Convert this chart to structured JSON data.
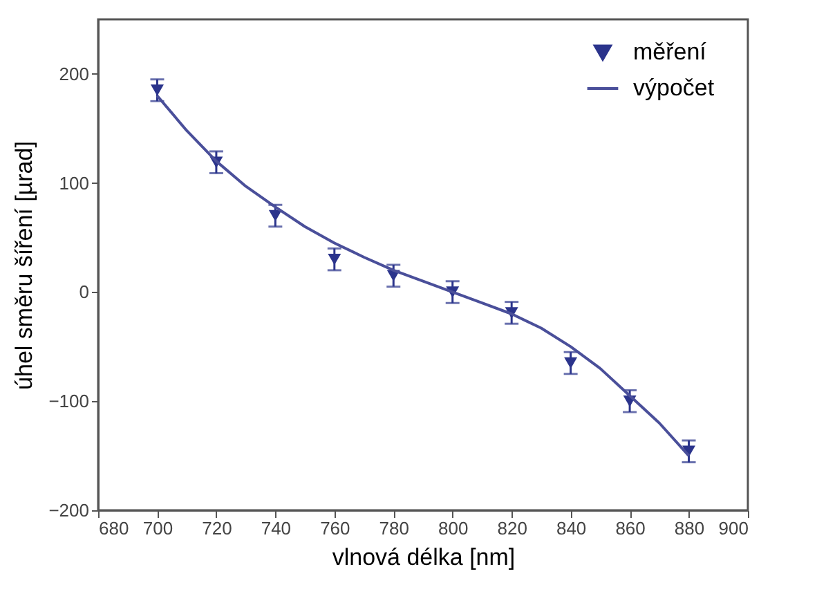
{
  "chart_data": {
    "type": "scatter",
    "xlabel": "vlnová délka [nm]",
    "ylabel": "úhel směru šíření [µrad]",
    "xlim": [
      680,
      900
    ],
    "xticks": [
      680,
      700,
      720,
      740,
      760,
      780,
      800,
      820,
      840,
      860,
      880,
      900
    ],
    "ylim": [
      -200,
      250
    ],
    "yticks": [
      -200,
      -100,
      0,
      100,
      200
    ],
    "grid": false,
    "legend": "top right",
    "series": [
      {
        "name": "měření",
        "marker": "triangle",
        "color": "#2b348c",
        "x": [
          700,
          720,
          740,
          760,
          780,
          800,
          820,
          840,
          860,
          880
        ],
        "values": [
          185,
          119,
          70,
          30,
          15,
          0,
          -19,
          -65,
          -100,
          -146
        ],
        "errors": [
          10,
          10,
          10,
          10,
          10,
          10,
          10,
          10,
          10,
          10
        ]
      },
      {
        "name": "výpočet",
        "type": "line",
        "marker": "none",
        "color": "#4a4f9a",
        "x": [
          700,
          710,
          720,
          730,
          740,
          750,
          760,
          770,
          780,
          790,
          800,
          810,
          820,
          830,
          840,
          850,
          860,
          870,
          880
        ],
        "values": [
          180,
          148,
          120,
          97,
          78,
          60,
          45,
          32,
          20,
          10,
          0,
          -10,
          -20,
          -33,
          -50,
          -70,
          -95,
          -120,
          -150
        ]
      }
    ]
  }
}
